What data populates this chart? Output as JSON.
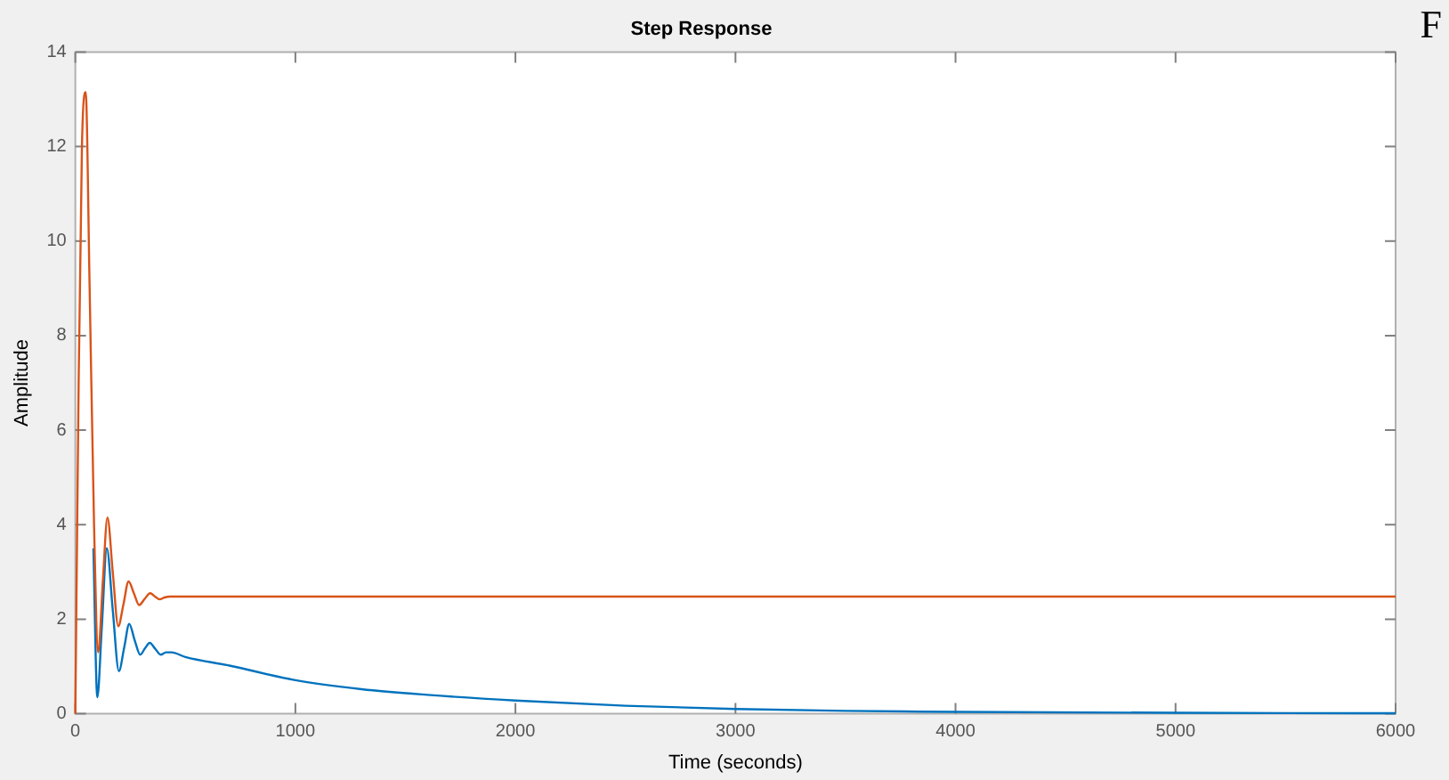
{
  "chart_data": {
    "type": "line",
    "title": "Step Response",
    "xlabel": "Time (seconds)",
    "ylabel": "Amplitude",
    "annotations": [
      "F"
    ],
    "xlim": [
      0,
      6000
    ],
    "xticks": [
      0,
      1000,
      2000,
      3000,
      4000,
      5000,
      6000
    ],
    "ylim": [
      0,
      14
    ],
    "yticks": [
      0,
      2,
      4,
      6,
      8,
      10,
      12,
      14
    ],
    "legend": false,
    "marker": "none",
    "line_style": "solid",
    "series": [
      {
        "color": "#0072bd",
        "x": [
          82,
          100,
          120,
          143,
          170,
          198,
          222,
          245,
          270,
          295,
          316,
          338,
          362,
          388,
          412,
          437,
          500,
          700,
          1000,
          1300,
          1600,
          2000,
          2500,
          3000,
          3500,
          4000,
          5000,
          6000
        ],
        "values": [
          3.5,
          0.35,
          1.8,
          3.5,
          2.2,
          0.9,
          1.4,
          1.9,
          1.55,
          1.25,
          1.38,
          1.5,
          1.38,
          1.25,
          1.3,
          1.3,
          1.2,
          1.02,
          0.71,
          0.52,
          0.4,
          0.28,
          0.17,
          0.1,
          0.06,
          0.04,
          0.02,
          0.01
        ]
      },
      {
        "color": "#d95319",
        "x": [
          0,
          15,
          30,
          47,
          65,
          85,
          104,
          125,
          146,
          170,
          195,
          218,
          242,
          266,
          290,
          315,
          340,
          362,
          383,
          405,
          430,
          1000,
          2000,
          3000,
          4000,
          5000,
          6000
        ],
        "values": [
          0,
          7,
          12,
          13.15,
          9,
          4,
          1.3,
          2.8,
          4.15,
          3,
          1.85,
          2.3,
          2.8,
          2.55,
          2.3,
          2.43,
          2.55,
          2.48,
          2.42,
          2.46,
          2.48,
          2.48,
          2.48,
          2.48,
          2.48,
          2.48,
          2.48
        ]
      }
    ]
  }
}
